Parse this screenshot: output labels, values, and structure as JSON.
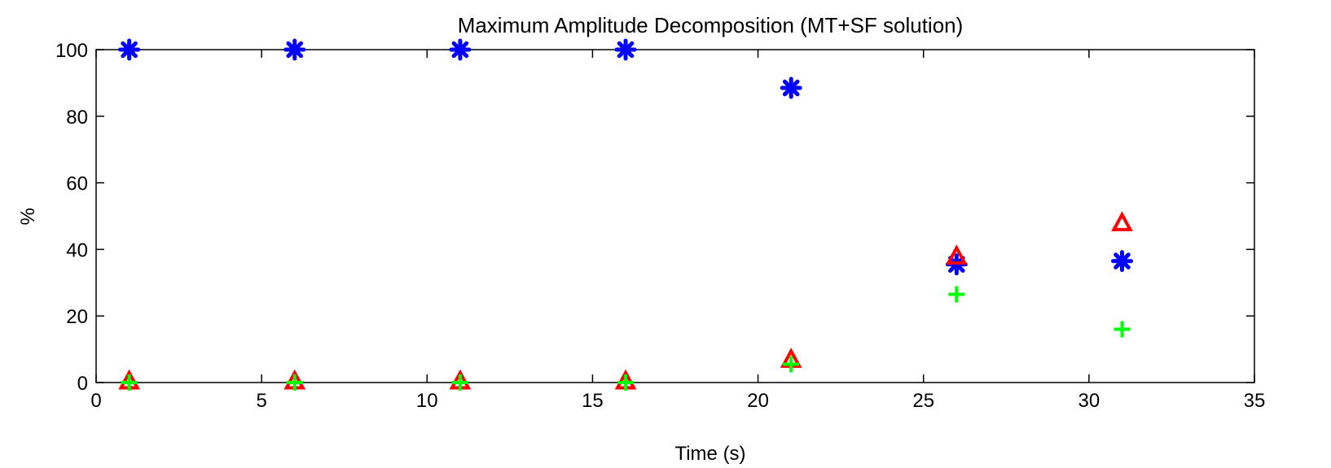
{
  "chart_data": {
    "type": "scatter",
    "title": "Maximum Amplitude Decomposition (MT+SF solution)",
    "xlabel": "Time (s)",
    "ylabel": "%",
    "xlim": [
      0,
      35
    ],
    "ylim": [
      0,
      100
    ],
    "xticks": [
      0,
      5,
      10,
      15,
      20,
      25,
      30,
      35
    ],
    "yticks": [
      0,
      20,
      40,
      60,
      80,
      100
    ],
    "grid": false,
    "series": [
      {
        "marker": "asterisk",
        "color": "#0000ff",
        "points": [
          [
            1,
            100
          ],
          [
            6,
            100
          ],
          [
            11,
            100
          ],
          [
            16,
            100
          ],
          [
            21,
            88.5
          ],
          [
            26,
            35.5
          ],
          [
            31,
            36.5
          ]
        ]
      },
      {
        "marker": "triangle",
        "color": "#ff0000",
        "points": [
          [
            1,
            0.5
          ],
          [
            6,
            0.5
          ],
          [
            11,
            0.5
          ],
          [
            16,
            0.5
          ],
          [
            21,
            7
          ],
          [
            26,
            38
          ],
          [
            31,
            48
          ]
        ]
      },
      {
        "marker": "plus",
        "color": "#00ff00",
        "points": [
          [
            1,
            0
          ],
          [
            6,
            0
          ],
          [
            11,
            0
          ],
          [
            16,
            0
          ],
          [
            21,
            5.5
          ],
          [
            26,
            26.5
          ],
          [
            31,
            16
          ]
        ]
      }
    ]
  }
}
